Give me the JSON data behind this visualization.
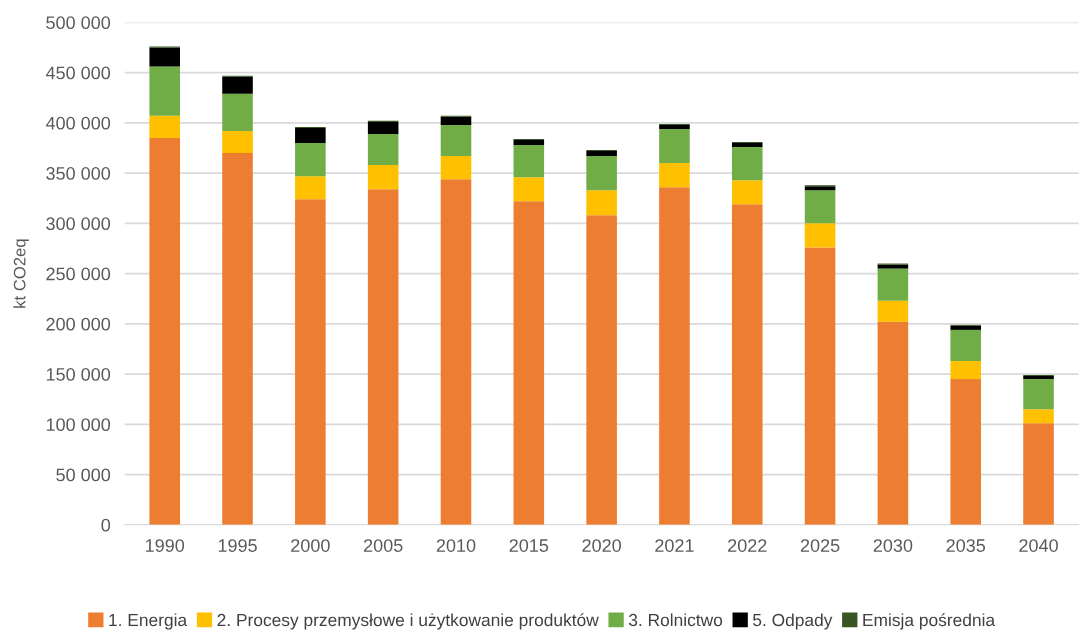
{
  "chart_data": {
    "type": "bar",
    "stacked": true,
    "ylabel": "kt CO2eq",
    "categories": [
      "1990",
      "1995",
      "2000",
      "2005",
      "2010",
      "2015",
      "2020",
      "2021",
      "2022",
      "2025",
      "2030",
      "2035",
      "2040"
    ],
    "series": [
      {
        "name": "1. Energia",
        "color": "#ed7d31",
        "values": [
          385000,
          370000,
          324000,
          334000,
          344000,
          322000,
          308000,
          336000,
          319000,
          276000,
          202000,
          145000,
          101000
        ]
      },
      {
        "name": "2. Procesy przemysłowe i użytkowanie produktów",
        "color": "#ffc000",
        "values": [
          22000,
          22000,
          23000,
          24000,
          23000,
          24000,
          25000,
          24000,
          24000,
          24000,
          21000,
          18000,
          14000
        ]
      },
      {
        "name": "3. Rolnictwo",
        "color": "#70ad47",
        "values": [
          49000,
          37000,
          33000,
          31000,
          31000,
          32000,
          34000,
          34000,
          33000,
          33000,
          32000,
          31000,
          30000
        ]
      },
      {
        "name": "5. Odpady",
        "color": "#000000",
        "values": [
          19000,
          17000,
          15000,
          12000,
          8000,
          5000,
          5000,
          4000,
          4000,
          4000,
          4000,
          4000,
          3000
        ]
      },
      {
        "name": "Emisja pośrednia",
        "color": "#375623",
        "values": [
          1000,
          1000,
          1000,
          1000,
          1000,
          1000,
          1000,
          1000,
          1000,
          1000,
          1000,
          1000,
          1000
        ]
      }
    ],
    "ylim": [
      0,
      500000
    ],
    "yticks": [
      0,
      {
        "value": 50000,
        "label": "50 000"
      },
      {
        "value": 100000,
        "label": "100 000"
      },
      {
        "value": 150000,
        "label": "150 000"
      },
      {
        "value": 200000,
        "label": "200 000"
      },
      {
        "value": 250000,
        "label": "250 000"
      },
      {
        "value": 300000,
        "label": "300 000"
      },
      {
        "value": 350000,
        "label": "350 000"
      },
      {
        "value": 400000,
        "label": "400 000"
      },
      {
        "value": 450000,
        "label": "450 000"
      },
      {
        "value": 500000,
        "label": "500 000"
      }
    ],
    "grid": "y",
    "legend": "bottom"
  }
}
